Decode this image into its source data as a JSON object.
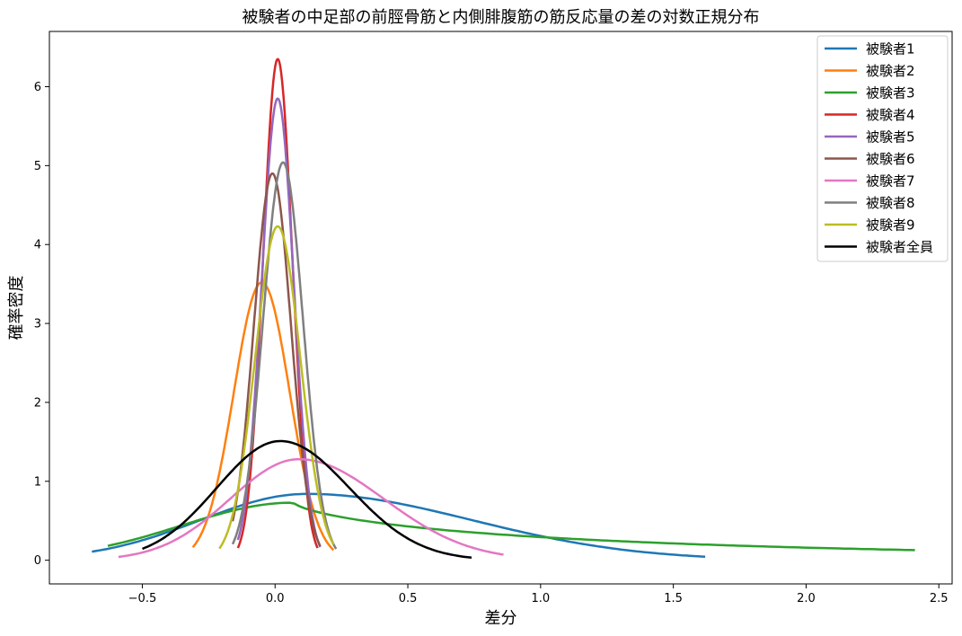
{
  "chart_data": {
    "type": "line",
    "title": "被験者の中足部の前脛骨筋と内側腓腹筋の筋反応量の差の対数正規分布",
    "xlabel": "差分",
    "ylabel": "確率密度",
    "xlim": [
      -0.85,
      2.55
    ],
    "ylim": [
      -0.3,
      6.7
    ],
    "xticks": [
      -0.5,
      0.0,
      0.5,
      1.0,
      1.5,
      2.0,
      2.5
    ],
    "xtick_labels": [
      "−0.5",
      "0.0",
      "0.5",
      "1.0",
      "1.5",
      "2.0",
      "2.5"
    ],
    "yticks": [
      0,
      1,
      2,
      3,
      4,
      5,
      6
    ],
    "ytick_labels": [
      "0",
      "1",
      "2",
      "3",
      "4",
      "5",
      "6"
    ],
    "grid": false,
    "legend_position": "top-right",
    "series": [
      {
        "name": "被験者1",
        "color": "#1f77b4",
        "x_min": -0.69,
        "x_max": 1.62,
        "mode": 0.12,
        "peak": 0.84,
        "sigma_left": 0.4,
        "sigma_right": 0.62,
        "tail_pow": 1.0
      },
      {
        "name": "被験者2",
        "color": "#ff7f0e",
        "x_min": -0.31,
        "x_max": 0.22,
        "mode": -0.05,
        "peak": 3.52,
        "sigma_left": 0.105,
        "sigma_right": 0.105,
        "tail_pow": 1.0
      },
      {
        "name": "被験者3",
        "color": "#2ca02c",
        "x_min": -0.63,
        "x_max": 2.41,
        "mode": 0.07,
        "peak": 0.73,
        "sigma_left": 0.42,
        "sigma_right": 0.75,
        "tail_pow": 0.35
      },
      {
        "name": "被験者4",
        "color": "#d62728",
        "x_min": -0.14,
        "x_max": 0.16,
        "mode": 0.01,
        "peak": 6.35,
        "sigma_left": 0.055,
        "sigma_right": 0.055,
        "tail_pow": 1.0
      },
      {
        "name": "被験者5",
        "color": "#9467bd",
        "x_min": -0.14,
        "x_max": 0.17,
        "mode": 0.01,
        "peak": 5.85,
        "sigma_left": 0.06,
        "sigma_right": 0.06,
        "tail_pow": 1.0
      },
      {
        "name": "被験者6",
        "color": "#8c564b",
        "x_min": -0.16,
        "x_max": 0.17,
        "mode": -0.01,
        "peak": 4.9,
        "sigma_left": 0.07,
        "sigma_right": 0.07,
        "tail_pow": 1.0
      },
      {
        "name": "被験者7",
        "color": "#e377c2",
        "x_min": -0.59,
        "x_max": 0.86,
        "mode": 0.09,
        "peak": 1.28,
        "sigma_left": 0.26,
        "sigma_right": 0.32,
        "tail_pow": 1.0
      },
      {
        "name": "被験者8",
        "color": "#7f7f7f",
        "x_min": -0.16,
        "x_max": 0.23,
        "mode": 0.03,
        "peak": 5.04,
        "sigma_left": 0.075,
        "sigma_right": 0.075,
        "tail_pow": 1.0
      },
      {
        "name": "被験者9",
        "color": "#bcbd22",
        "x_min": -0.21,
        "x_max": 0.22,
        "mode": 0.01,
        "peak": 4.23,
        "sigma_left": 0.085,
        "sigma_right": 0.085,
        "tail_pow": 1.0
      },
      {
        "name": "被験者全員",
        "color": "#000000",
        "x_min": -0.5,
        "x_max": 0.74,
        "mode": 0.02,
        "peak": 1.51,
        "sigma_left": 0.24,
        "sigma_right": 0.26,
        "tail_pow": 1.0
      }
    ]
  }
}
